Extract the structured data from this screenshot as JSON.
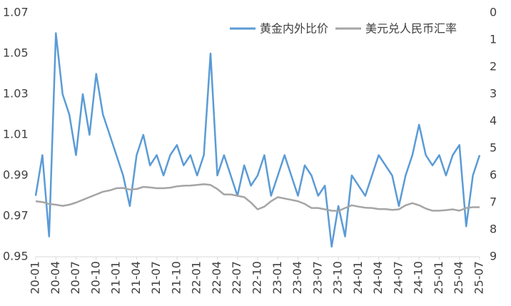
{
  "chart_data": {
    "type": "line",
    "categories": [
      "20-01",
      null,
      null,
      "20-04",
      null,
      null,
      "20-07",
      null,
      null,
      "20-10",
      null,
      null,
      "21-01",
      null,
      null,
      "21-04",
      null,
      null,
      "21-07",
      null,
      null,
      "21-10",
      null,
      null,
      "22-01",
      null,
      null,
      "22-04",
      null,
      null,
      "22-07",
      null,
      null,
      "22-10",
      null,
      null,
      "23-01",
      null,
      null,
      "23-04",
      null,
      null,
      "23-07",
      null,
      null,
      "23-10",
      null,
      null,
      "24-01",
      null,
      null,
      "24-04",
      null,
      null,
      "24-07",
      null,
      null,
      "24-10",
      null,
      null,
      "25-01",
      null,
      null,
      "25-04",
      null,
      null,
      "25-07"
    ],
    "series": [
      {
        "name": "黄金内外比价",
        "color": "#5b9bd5",
        "values": [
          0.98,
          1.0,
          0.96,
          1.06,
          1.03,
          1.02,
          1.0,
          1.03,
          1.01,
          1.04,
          1.02,
          1.01,
          1.0,
          0.99,
          0.975,
          1.0,
          1.01,
          0.995,
          1.0,
          0.99,
          1.0,
          1.005,
          0.995,
          1.0,
          0.99,
          1.0,
          1.05,
          0.99,
          1.0,
          0.99,
          0.98,
          0.995,
          0.985,
          0.99,
          1.0,
          0.98,
          0.99,
          1.0,
          0.99,
          0.98,
          0.995,
          0.99,
          0.98,
          0.985,
          0.955,
          0.975,
          0.96,
          0.99,
          0.985,
          0.98,
          0.99,
          1.0,
          0.995,
          0.99,
          0.975,
          0.99,
          1.0,
          1.015,
          1.0,
          0.995,
          1.0,
          0.99,
          1.0,
          1.005,
          0.965,
          0.99,
          1.0
        ]
      },
      {
        "name": "美元兑人民币汇率",
        "color": "#a5a5a5",
        "axis": "y2",
        "values": [
          6.95,
          6.98,
          7.05,
          7.08,
          7.12,
          7.08,
          7.0,
          6.9,
          6.8,
          6.7,
          6.6,
          6.55,
          6.47,
          6.46,
          6.52,
          6.5,
          6.42,
          6.44,
          6.47,
          6.47,
          6.45,
          6.4,
          6.38,
          6.37,
          6.35,
          6.32,
          6.35,
          6.5,
          6.7,
          6.7,
          6.75,
          6.8,
          7.0,
          7.25,
          7.15,
          6.95,
          6.8,
          6.85,
          6.9,
          6.95,
          7.05,
          7.2,
          7.2,
          7.25,
          7.3,
          7.31,
          7.2,
          7.1,
          7.15,
          7.19,
          7.2,
          7.24,
          7.24,
          7.27,
          7.25,
          7.1,
          7.02,
          7.1,
          7.22,
          7.3,
          7.3,
          7.28,
          7.25,
          7.3,
          7.2,
          7.17,
          7.17
        ]
      }
    ],
    "ylim": [
      0.95,
      1.07
    ],
    "yticks": [
      0.95,
      0.97,
      0.99,
      1.01,
      1.03,
      1.05,
      1.07
    ],
    "y2lim": [
      0,
      9
    ],
    "y2_reversed": true,
    "y2ticks": [
      0,
      1,
      2,
      3,
      4,
      5,
      6,
      7,
      8,
      9
    ],
    "legend": "top-right",
    "grid": false
  }
}
